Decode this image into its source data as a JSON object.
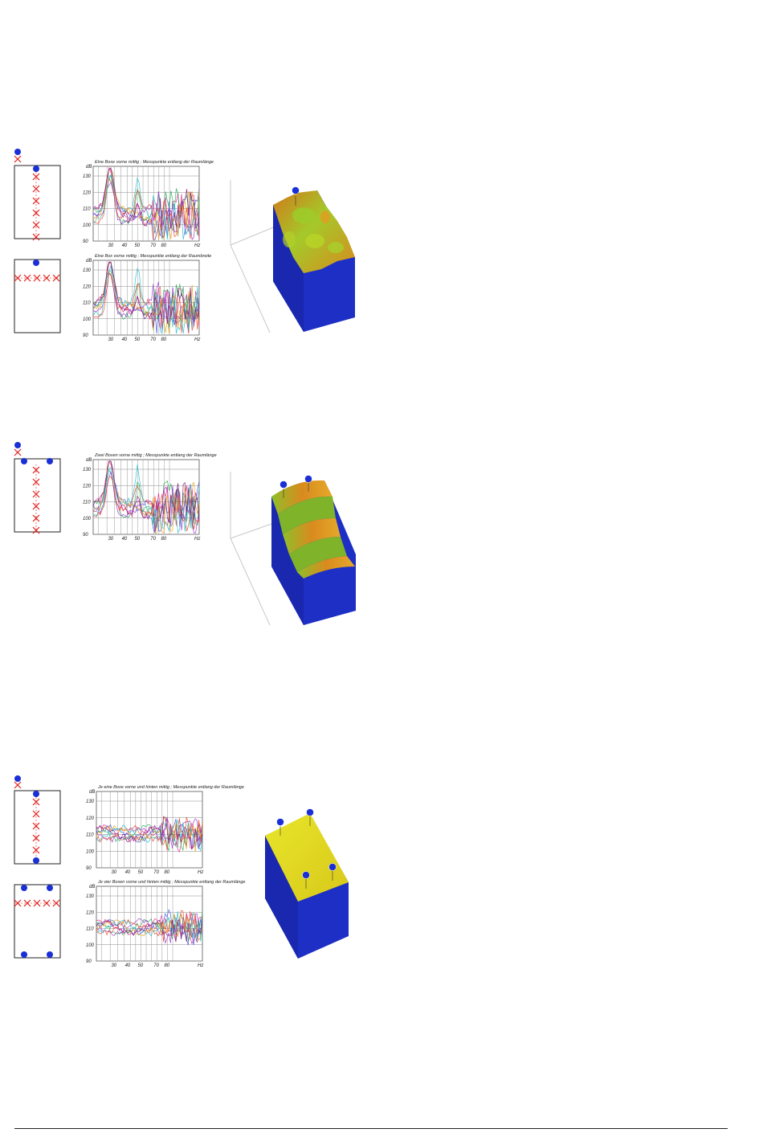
{
  "colors": {
    "speaker": "#1a2fd6",
    "mic": "#e0201c",
    "floor": "#1d2fc4",
    "surface_orange": "#d98a1e",
    "surface_green": "#9ccc2a",
    "surface_yellow": "#e6e21e",
    "series": [
      "#3355dd",
      "#e0208c",
      "#22aa55",
      "#9933cc",
      "#ee4422",
      "#22bbcc",
      "#e6a010",
      "#7a1a7a",
      "#1a1a1a"
    ]
  },
  "sections": [
    {
      "id": "section1",
      "charts": [
        {
          "title": "Eine Boxe vorne mittig ; Messpunkte entlang der Raumlänge",
          "unit_db": "dB",
          "unit_hz": "Hz",
          "yticks": [
            "130",
            "120",
            "110",
            "100",
            "90"
          ],
          "xticks": [
            "30",
            "40",
            "50",
            "70",
            "80"
          ]
        },
        {
          "title": "Eine Box vorne mittig ; Messpunkte entlang der Raumbreite",
          "unit_db": "dB",
          "unit_hz": "Hz",
          "yticks": [
            "130",
            "120",
            "110",
            "100",
            "90"
          ],
          "xticks": [
            "30",
            "40",
            "50",
            "70",
            "80"
          ]
        }
      ]
    },
    {
      "id": "section2",
      "charts": [
        {
          "title": "Zwei Boxen vorne mittig ; Messpunkte entlang der Raumlänge",
          "unit_db": "dB",
          "unit_hz": "Hz",
          "yticks": [
            "130",
            "120",
            "110",
            "100",
            "90"
          ],
          "xticks": [
            "30",
            "40",
            "50",
            "70",
            "80"
          ]
        }
      ]
    },
    {
      "id": "section3",
      "charts": [
        {
          "title": "Je eine Boxe vorne und hinten mittig ; Messpunkte entlang der Raumlänge",
          "unit_db": "dB",
          "unit_hz": "Hz",
          "yticks": [
            "130",
            "120",
            "110",
            "100",
            "90"
          ],
          "xticks": [
            "30",
            "40",
            "50",
            "70",
            "80"
          ]
        },
        {
          "title": "Je vier Boxen vorne und hinten mittig ; Messpunkte entlang der Raumlänge",
          "unit_db": "dB",
          "unit_hz": "Hz",
          "yticks": [
            "130",
            "120",
            "110",
            "100",
            "90"
          ],
          "xticks": [
            "30",
            "40",
            "50",
            "70",
            "80"
          ]
        }
      ]
    }
  ]
}
